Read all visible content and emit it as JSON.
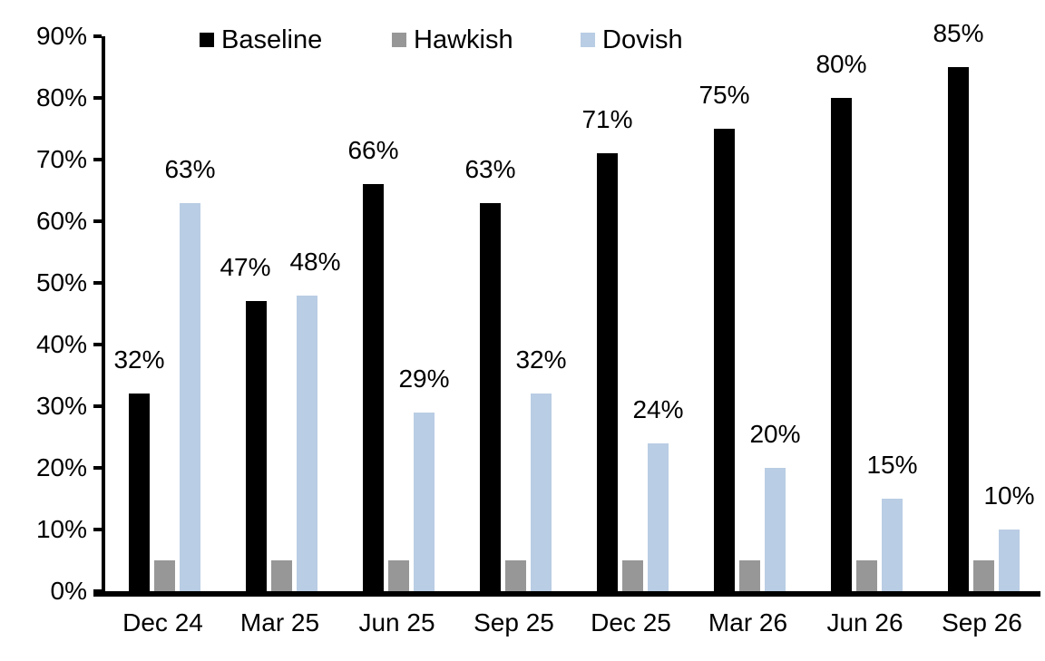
{
  "chart_data": {
    "type": "bar",
    "title": "",
    "xlabel": "",
    "ylabel": "",
    "categories": [
      "Dec 24",
      "Mar 25",
      "Jun 25",
      "Sep 25",
      "Dec 25",
      "Mar 26",
      "Jun 26",
      "Sep 26"
    ],
    "series": [
      {
        "name": "Baseline",
        "color": "#000000",
        "values": [
          32,
          47,
          66,
          63,
          71,
          75,
          80,
          85
        ],
        "data_labels": [
          "32%",
          "47%",
          "66%",
          "63%",
          "71%",
          "75%",
          "80%",
          "85%"
        ],
        "show_labels": true
      },
      {
        "name": "Hawkish",
        "color": "#979797",
        "values": [
          5,
          5,
          5,
          5,
          5,
          5,
          5,
          5
        ],
        "data_labels": [],
        "show_labels": false
      },
      {
        "name": "Dovish",
        "color": "#B9CDE4",
        "values": [
          63,
          48,
          29,
          32,
          24,
          20,
          15,
          10
        ],
        "data_labels": [
          "63%",
          "48%",
          "29%",
          "32%",
          "24%",
          "20%",
          "15%",
          "10%"
        ],
        "show_labels": true
      }
    ],
    "ylim": [
      0,
      90
    ],
    "ytick_step": 10,
    "ytick_labels": [
      "0%",
      "10%",
      "20%",
      "30%",
      "40%",
      "50%",
      "60%",
      "70%",
      "80%",
      "90%"
    ],
    "grid": false,
    "legend_position": "top",
    "background_color": "#ffffff",
    "axis_color": "#000000"
  }
}
